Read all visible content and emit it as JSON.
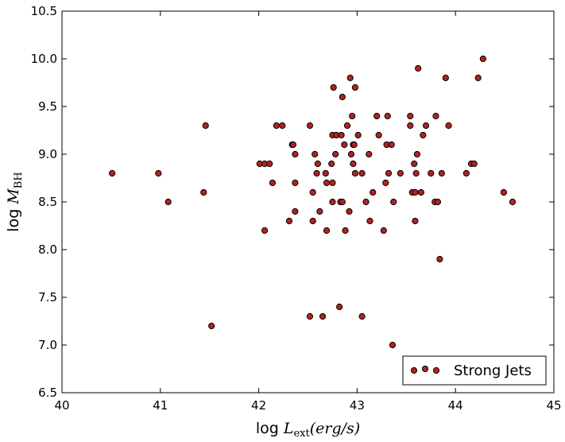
{
  "chart_data": {
    "type": "scatter",
    "title": "",
    "xlabel": {
      "prefix": "log ",
      "symbol": "L",
      "subscript": "ext",
      "unit": "(erg/s)"
    },
    "ylabel": {
      "prefix": "log ",
      "symbol": "M",
      "subscript": "BH"
    },
    "xlim": [
      40,
      45
    ],
    "ylim": [
      6.5,
      10.5
    ],
    "xticks": [
      "40",
      "41",
      "42",
      "43",
      "44",
      "45"
    ],
    "yticks": [
      "6.5",
      "7.0",
      "7.5",
      "8.0",
      "8.5",
      "9.0",
      "9.5",
      "10.0",
      "10.5"
    ],
    "grid": false,
    "legend": {
      "placement": "lower-right",
      "entries": [
        "Strong Jets"
      ]
    },
    "series": [
      {
        "name": "Strong Jets",
        "color": "#b22222",
        "edge_color": "#000000",
        "points": [
          [
            40.51,
            8.8
          ],
          [
            40.98,
            8.8
          ],
          [
            41.08,
            8.5
          ],
          [
            41.44,
            8.6
          ],
          [
            41.46,
            9.3
          ],
          [
            41.52,
            7.2
          ],
          [
            42.01,
            8.9
          ],
          [
            42.06,
            8.9
          ],
          [
            42.06,
            8.2
          ],
          [
            42.11,
            8.9
          ],
          [
            42.14,
            8.7
          ],
          [
            42.18,
            9.3
          ],
          [
            42.24,
            9.3
          ],
          [
            42.31,
            8.3
          ],
          [
            42.34,
            9.1
          ],
          [
            42.35,
            9.1
          ],
          [
            42.37,
            9.0
          ],
          [
            42.37,
            8.7
          ],
          [
            42.37,
            8.4
          ],
          [
            42.52,
            9.3
          ],
          [
            42.52,
            7.3
          ],
          [
            42.55,
            8.6
          ],
          [
            42.55,
            8.3
          ],
          [
            42.57,
            9.0
          ],
          [
            42.59,
            8.8
          ],
          [
            42.6,
            8.9
          ],
          [
            42.62,
            8.4
          ],
          [
            42.65,
            7.3
          ],
          [
            42.68,
            8.8
          ],
          [
            42.69,
            8.7
          ],
          [
            42.69,
            8.2
          ],
          [
            42.74,
            8.9
          ],
          [
            42.75,
            9.2
          ],
          [
            42.75,
            8.7
          ],
          [
            42.75,
            8.5
          ],
          [
            42.76,
            9.7
          ],
          [
            42.78,
            9.0
          ],
          [
            42.79,
            9.2
          ],
          [
            42.82,
            7.4
          ],
          [
            42.83,
            8.5
          ],
          [
            42.84,
            9.2
          ],
          [
            42.85,
            9.6
          ],
          [
            42.85,
            8.5
          ],
          [
            42.87,
            9.1
          ],
          [
            42.88,
            8.2
          ],
          [
            42.9,
            9.3
          ],
          [
            42.92,
            8.4
          ],
          [
            42.93,
            9.8
          ],
          [
            42.94,
            9.0
          ],
          [
            42.95,
            9.4
          ],
          [
            42.96,
            9.1
          ],
          [
            42.96,
            8.9
          ],
          [
            42.97,
            9.1
          ],
          [
            42.98,
            9.7
          ],
          [
            42.98,
            8.8
          ],
          [
            43.01,
            9.2
          ],
          [
            43.05,
            8.8
          ],
          [
            43.05,
            7.3
          ],
          [
            43.09,
            8.5
          ],
          [
            43.12,
            9.0
          ],
          [
            43.13,
            8.3
          ],
          [
            43.16,
            8.6
          ],
          [
            43.2,
            9.4
          ],
          [
            43.22,
            9.2
          ],
          [
            43.27,
            8.2
          ],
          [
            43.29,
            8.7
          ],
          [
            43.3,
            9.1
          ],
          [
            43.31,
            9.4
          ],
          [
            43.32,
            8.8
          ],
          [
            43.35,
            9.1
          ],
          [
            43.36,
            7.0
          ],
          [
            43.37,
            8.5
          ],
          [
            43.44,
            8.8
          ],
          [
            43.54,
            9.4
          ],
          [
            43.54,
            9.3
          ],
          [
            43.56,
            8.6
          ],
          [
            43.58,
            8.9
          ],
          [
            43.59,
            8.3
          ],
          [
            43.59,
            8.6
          ],
          [
            43.6,
            8.8
          ],
          [
            43.61,
            9.0
          ],
          [
            43.62,
            9.9
          ],
          [
            43.65,
            8.6
          ],
          [
            43.67,
            9.2
          ],
          [
            43.7,
            9.3
          ],
          [
            43.75,
            8.8
          ],
          [
            43.79,
            8.5
          ],
          [
            43.8,
            9.4
          ],
          [
            43.82,
            8.5
          ],
          [
            43.84,
            7.9
          ],
          [
            43.86,
            8.8
          ],
          [
            43.9,
            9.8
          ],
          [
            43.93,
            9.3
          ],
          [
            44.11,
            8.8
          ],
          [
            44.16,
            8.9
          ],
          [
            44.19,
            8.9
          ],
          [
            44.23,
            9.8
          ],
          [
            44.28,
            10.0
          ],
          [
            44.49,
            8.6
          ],
          [
            44.58,
            8.5
          ]
        ]
      }
    ]
  }
}
